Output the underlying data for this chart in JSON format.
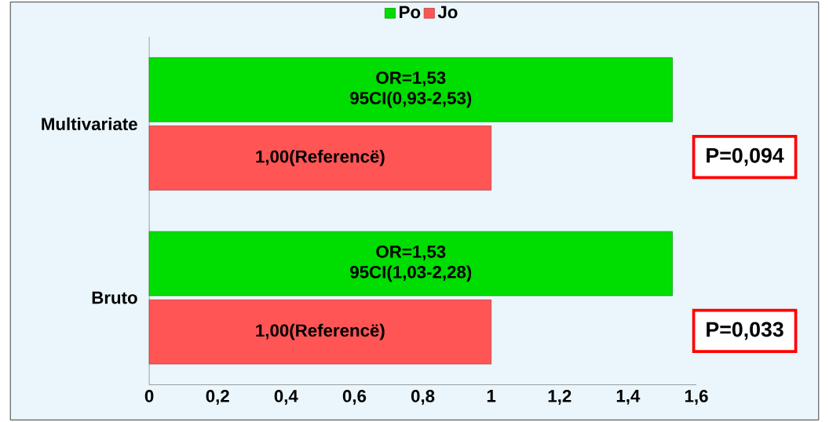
{
  "chart_data": {
    "type": "bar",
    "orientation": "horizontal",
    "categories": [
      "Multivariate",
      "Bruto"
    ],
    "series": [
      {
        "name": "Po",
        "color": "#00dd00",
        "values": [
          1.53,
          1.53
        ],
        "value_labels": [
          "OR=1,53 95CI(0,93-2,53)",
          "OR=1,53 95CI(1,03-2,28)"
        ]
      },
      {
        "name": "Jo",
        "color": "#ff5555",
        "values": [
          1.0,
          1.0
        ],
        "value_labels": [
          "1,00(Referencë)",
          "1,00(Referencë)"
        ]
      }
    ],
    "xlim": [
      0,
      1.6
    ],
    "xticks": [
      0,
      {
        "value": 0.2,
        "label": "0,2"
      },
      {
        "value": 0.4,
        "label": "0,4"
      },
      {
        "value": 0.6,
        "label": "0,6"
      },
      {
        "value": 0.8,
        "label": "0,8"
      },
      1,
      {
        "value": 1.2,
        "label": "1,2"
      },
      {
        "value": 1.4,
        "label": "1,4"
      },
      {
        "value": 1.6,
        "label": "1,6"
      }
    ],
    "annotations": [
      "P=0,094",
      "P=0,033"
    ],
    "legend": "top",
    "grid": false
  }
}
